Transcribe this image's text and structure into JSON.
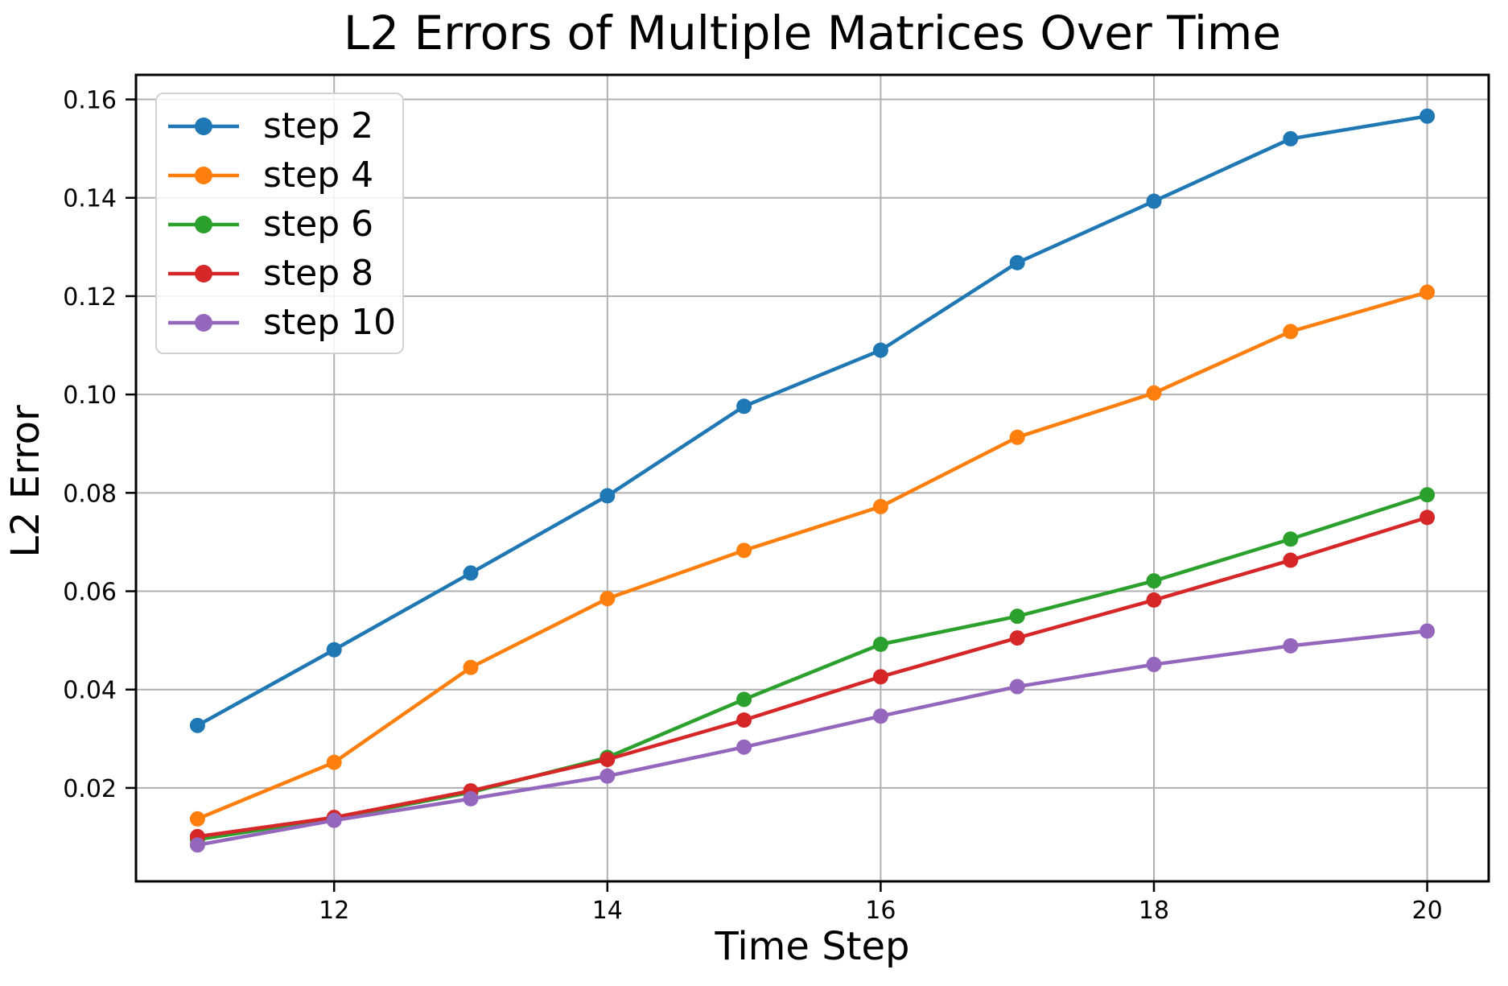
{
  "chart_data": {
    "type": "line",
    "title": "L2 Errors of Multiple Matrices Over Time",
    "xlabel": "Time Step",
    "ylabel": "L2 Error",
    "x": [
      11,
      12,
      13,
      14,
      15,
      16,
      17,
      18,
      19,
      20
    ],
    "series": [
      {
        "name": "step 2",
        "color": "#1f77b4",
        "values": [
          0.0327,
          0.0481,
          0.0637,
          0.0794,
          0.0976,
          0.109,
          0.1268,
          0.1393,
          0.152,
          0.1566
        ]
      },
      {
        "name": "step 4",
        "color": "#ff7f0e",
        "values": [
          0.0137,
          0.0252,
          0.0445,
          0.0585,
          0.0683,
          0.0772,
          0.0913,
          0.1003,
          0.1128,
          0.1208
        ]
      },
      {
        "name": "step 6",
        "color": "#2ca02c",
        "values": [
          0.0095,
          0.0138,
          0.0191,
          0.0262,
          0.038,
          0.0492,
          0.0549,
          0.0621,
          0.0706,
          0.0796
        ]
      },
      {
        "name": "step 8",
        "color": "#d62728",
        "values": [
          0.0101,
          0.014,
          0.0194,
          0.0258,
          0.0338,
          0.0426,
          0.0505,
          0.0582,
          0.0663,
          0.075
        ]
      },
      {
        "name": "step 10",
        "color": "#9467bd",
        "values": [
          0.0084,
          0.0134,
          0.0178,
          0.0224,
          0.0283,
          0.0346,
          0.0406,
          0.0451,
          0.0489,
          0.0519
        ]
      }
    ],
    "xlim": [
      10.55,
      20.45
    ],
    "ylim": [
      0.001,
      0.165
    ],
    "xticks": [
      12,
      14,
      16,
      18,
      20
    ],
    "xticklabels": [
      "12",
      "14",
      "16",
      "18",
      "20"
    ],
    "yticks": [
      0.02,
      0.04,
      0.06,
      0.08,
      0.1,
      0.12,
      0.14,
      0.16
    ],
    "yticklabels": [
      "0.02",
      "0.04",
      "0.06",
      "0.08",
      "0.10",
      "0.12",
      "0.14",
      "0.16"
    ],
    "grid": true,
    "legend_position": "upper left",
    "legend_labels": [
      "step 2",
      "step 4",
      "step 6",
      "step 8",
      "step 10"
    ],
    "marker": "o",
    "colors": {
      "grid": "#b0b0b0",
      "spine": "#000000",
      "tick_label": "#000000",
      "legend_border": "#d2d2d2",
      "background": "#ffffff"
    }
  }
}
